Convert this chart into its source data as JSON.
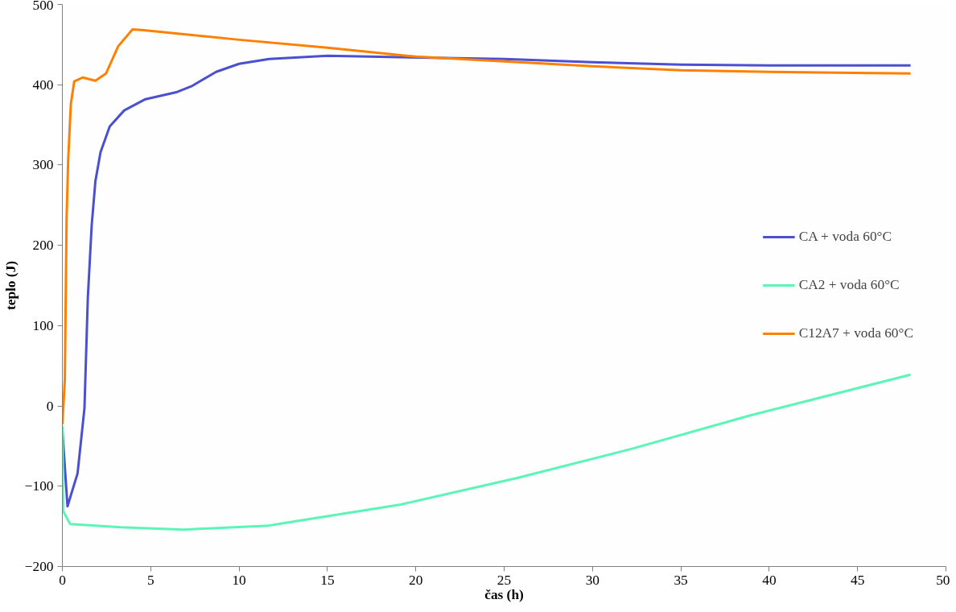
{
  "chart_data": {
    "type": "line",
    "xlabel": "čas (h)",
    "ylabel": "teplo (J)",
    "xlim": [
      0,
      50
    ],
    "ylim": [
      -200,
      500
    ],
    "xticks": [
      0,
      5,
      10,
      15,
      20,
      25,
      30,
      35,
      40,
      45,
      50
    ],
    "yticks": [
      -200,
      -100,
      0,
      100,
      200,
      300,
      400,
      500
    ],
    "grid": false,
    "legend": "right",
    "marker": "none",
    "line_style": "solid",
    "series": [
      {
        "name": "CA + voda 60°C",
        "color": "#4b50d0",
        "x": [
          0,
          0.29,
          0.86,
          1.25,
          1.44,
          1.66,
          1.87,
          2.16,
          2.68,
          3.5,
          4.7,
          6.5,
          7.3,
          8.7,
          10,
          11.7,
          15,
          25,
          30,
          35,
          40,
          48
        ],
        "values": [
          -30,
          -125,
          -84,
          -3,
          134,
          225,
          280,
          316,
          348,
          368,
          382,
          391,
          398,
          416,
          426,
          432,
          436,
          432,
          428,
          425,
          424,
          424
        ]
      },
      {
        "name": "CA2 + voda 60°C",
        "color": "#5cf5b8",
        "x": [
          0,
          0.05,
          0.43,
          3.3,
          6.9,
          11.7,
          12.5,
          19.1,
          25.7,
          32.3,
          38.9,
          48
        ],
        "values": [
          -25,
          -131,
          -147,
          -151,
          -154,
          -149,
          -146,
          -123,
          -90,
          -53,
          -12,
          39
        ]
      },
      {
        "name": "C12A7 + voda 60°C",
        "color": "#ff8000",
        "x": [
          0,
          0.14,
          0.24,
          0.33,
          0.48,
          0.67,
          1.15,
          1.87,
          2.47,
          3.16,
          3.97,
          4.6,
          10,
          15,
          20,
          25,
          30,
          35,
          40,
          48
        ],
        "values": [
          -23,
          33,
          234,
          307,
          376,
          404,
          409,
          405,
          414,
          448,
          469,
          468,
          456,
          446,
          435,
          429,
          423,
          418,
          416,
          414
        ]
      }
    ]
  }
}
